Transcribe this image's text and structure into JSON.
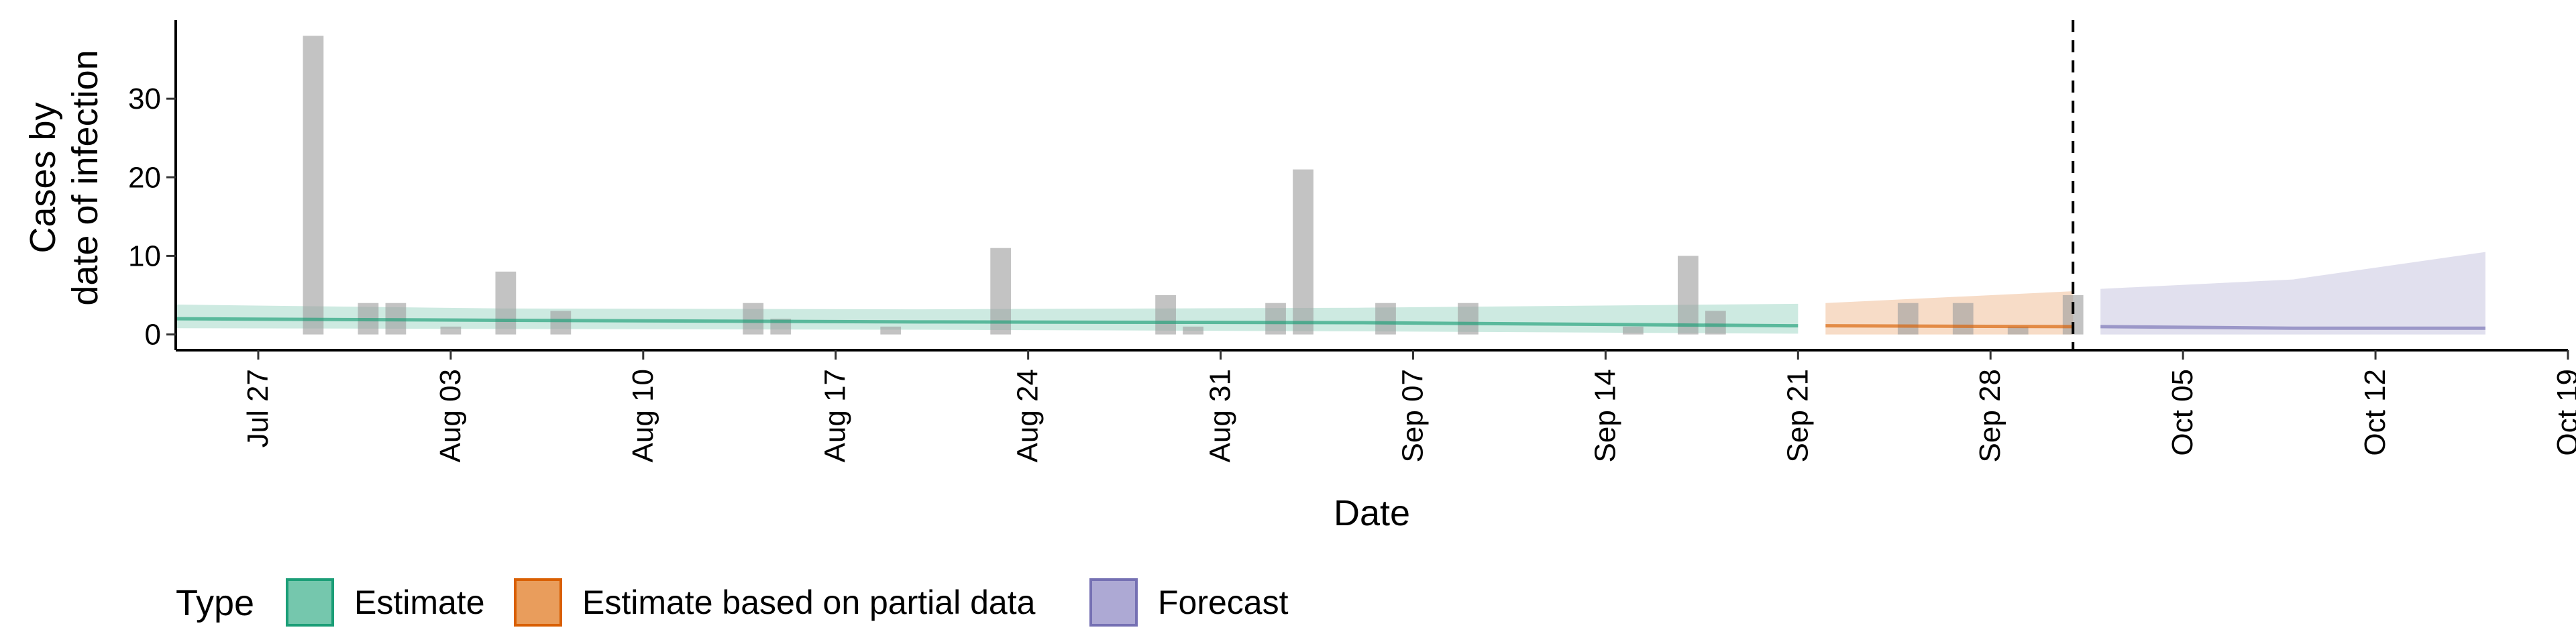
{
  "chart_data": {
    "type": "bar",
    "xlabel": "Date",
    "ylabel": [
      "Cases by",
      "date of infection"
    ],
    "ylim": [
      -2,
      40
    ],
    "xlim": [
      "2020-07-24",
      "2020-10-19"
    ],
    "grid": false,
    "yticks": [
      0,
      10,
      20,
      30
    ],
    "xticks": [
      {
        "date": "2020-07-27",
        "label": "Jul 27"
      },
      {
        "date": "2020-08-03",
        "label": "Aug 03"
      },
      {
        "date": "2020-08-10",
        "label": "Aug 10"
      },
      {
        "date": "2020-08-17",
        "label": "Aug 17"
      },
      {
        "date": "2020-08-24",
        "label": "Aug 24"
      },
      {
        "date": "2020-08-31",
        "label": "Aug 31"
      },
      {
        "date": "2020-09-07",
        "label": "Sep 07"
      },
      {
        "date": "2020-09-14",
        "label": "Sep 14"
      },
      {
        "date": "2020-09-21",
        "label": "Sep 21"
      },
      {
        "date": "2020-09-28",
        "label": "Sep 28"
      },
      {
        "date": "2020-10-05",
        "label": "Oct 05"
      },
      {
        "date": "2020-10-12",
        "label": "Oct 12"
      },
      {
        "date": "2020-10-19",
        "label": "Oct 19"
      }
    ],
    "reported_cases": [
      {
        "date": "2020-07-29",
        "value": 38
      },
      {
        "date": "2020-07-31",
        "value": 4
      },
      {
        "date": "2020-08-01",
        "value": 4
      },
      {
        "date": "2020-08-03",
        "value": 1
      },
      {
        "date": "2020-08-05",
        "value": 8
      },
      {
        "date": "2020-08-07",
        "value": 3
      },
      {
        "date": "2020-08-14",
        "value": 4
      },
      {
        "date": "2020-08-15",
        "value": 2
      },
      {
        "date": "2020-08-19",
        "value": 1
      },
      {
        "date": "2020-08-23",
        "value": 11
      },
      {
        "date": "2020-08-29",
        "value": 5
      },
      {
        "date": "2020-08-30",
        "value": 1
      },
      {
        "date": "2020-09-02",
        "value": 4
      },
      {
        "date": "2020-09-03",
        "value": 21
      },
      {
        "date": "2020-09-06",
        "value": 4
      },
      {
        "date": "2020-09-09",
        "value": 4
      },
      {
        "date": "2020-09-15",
        "value": 1
      },
      {
        "date": "2020-09-17",
        "value": 10
      },
      {
        "date": "2020-09-18",
        "value": 3
      },
      {
        "date": "2020-09-25",
        "value": 4
      },
      {
        "date": "2020-09-27",
        "value": 4
      },
      {
        "date": "2020-09-29",
        "value": 1
      },
      {
        "date": "2020-10-01",
        "value": 5
      }
    ],
    "vline": "2020-10-01",
    "series": [
      {
        "name": "Estimate",
        "color": "#1B9E77",
        "points": [
          {
            "date": "2020-07-24",
            "median": 2.0,
            "lower": 0.8,
            "upper": 3.8
          },
          {
            "date": "2020-08-05",
            "median": 1.8,
            "lower": 0.7,
            "upper": 3.3
          },
          {
            "date": "2020-08-20",
            "median": 1.6,
            "lower": 0.6,
            "upper": 3.2
          },
          {
            "date": "2020-09-05",
            "median": 1.5,
            "lower": 0.4,
            "upper": 3.4
          },
          {
            "date": "2020-09-21",
            "median": 1.1,
            "lower": 0.1,
            "upper": 3.9
          }
        ]
      },
      {
        "name": "Estimate based on partial data",
        "color": "#D95F02",
        "points": [
          {
            "date": "2020-09-22",
            "median": 1.1,
            "lower": 0.0,
            "upper": 4.0
          },
          {
            "date": "2020-10-01",
            "median": 1.0,
            "lower": 0.0,
            "upper": 5.5
          }
        ]
      },
      {
        "name": "Forecast",
        "color": "#7570B3",
        "points": [
          {
            "date": "2020-10-02",
            "median": 1.0,
            "lower": 0.0,
            "upper": 5.8
          },
          {
            "date": "2020-10-09",
            "median": 0.8,
            "lower": 0.0,
            "upper": 7.0
          },
          {
            "date": "2020-10-16",
            "median": 0.8,
            "lower": 0.0,
            "upper": 10.5
          }
        ]
      }
    ],
    "legend": {
      "position": "bottom",
      "title": "Type",
      "items": [
        {
          "label": "Estimate",
          "fill": "#75C7AD",
          "stroke": "#1B9E77"
        },
        {
          "label": "Estimate based on partial data",
          "fill": "#E99D5C",
          "stroke": "#D95F02"
        },
        {
          "label": "Forecast",
          "fill": "#ADA9D4",
          "stroke": "#7570B3"
        }
      ]
    }
  }
}
